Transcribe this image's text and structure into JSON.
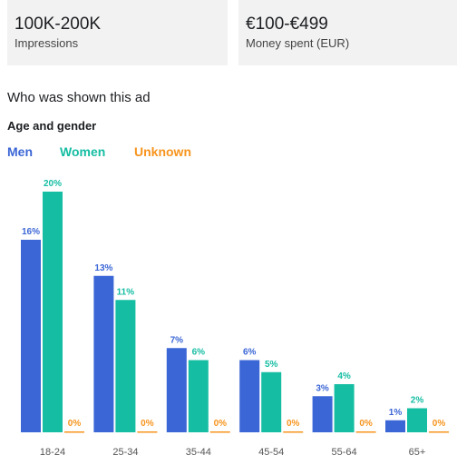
{
  "summary": {
    "impressions_value": "100K-200K",
    "impressions_label": "Impressions",
    "spent_value": "€100-€499",
    "spent_label": "Money spent (EUR)"
  },
  "section_title": "Who was shown this ad",
  "subsection_title": "Age and gender",
  "colors": {
    "men": "#3b66d6",
    "women": "#15bda3",
    "unknown": "#f7941d",
    "axis_text": "#555555"
  },
  "chart_data": {
    "type": "bar",
    "title": "Age and gender",
    "categories": [
      "18-24",
      "25-34",
      "35-44",
      "45-54",
      "55-64",
      "65+"
    ],
    "series": [
      {
        "name": "Men",
        "values": [
          16,
          13,
          7,
          6,
          3,
          1
        ]
      },
      {
        "name": "Women",
        "values": [
          20,
          11,
          6,
          5,
          4,
          2
        ]
      },
      {
        "name": "Unknown",
        "values": [
          0,
          0,
          0,
          0,
          0,
          0
        ]
      }
    ],
    "value_suffix": "%",
    "ylim": [
      0,
      20
    ],
    "legend_position": "top-left",
    "grid": false
  }
}
